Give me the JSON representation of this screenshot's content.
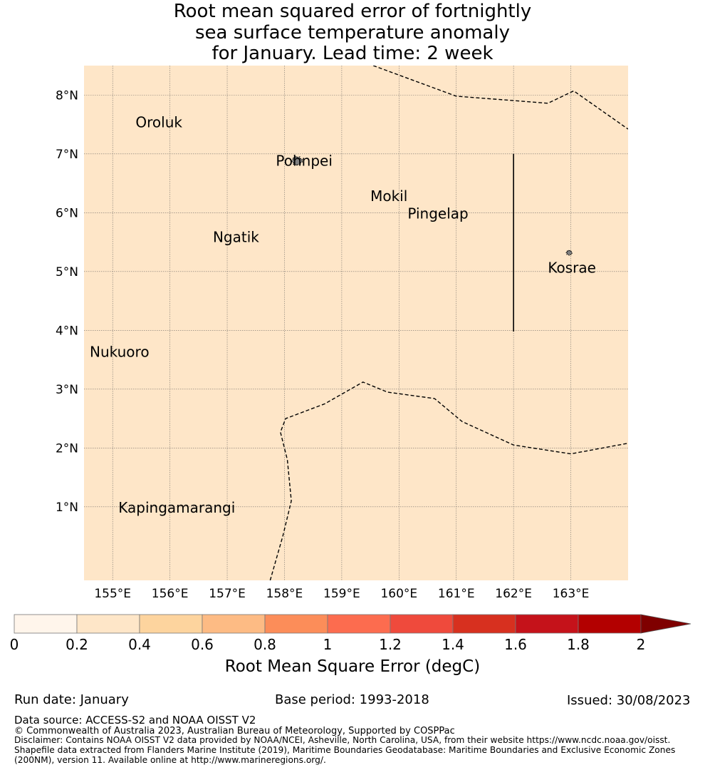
{
  "title": {
    "line1": "Root mean squared error of fortnightly",
    "line2": "sea surface temperature anomaly",
    "line3": "for January. Lead time: 2 week"
  },
  "map": {
    "lon_range": [
      154.5,
      164.0
    ],
    "lat_range": [
      -0.25,
      8.5
    ],
    "lon_ticks": [
      {
        "value": 155,
        "label": "155°E"
      },
      {
        "value": 156,
        "label": "156°E"
      },
      {
        "value": 157,
        "label": "157°E"
      },
      {
        "value": 158,
        "label": "158°E"
      },
      {
        "value": 159,
        "label": "159°E"
      },
      {
        "value": 160,
        "label": "160°E"
      },
      {
        "value": 161,
        "label": "161°E"
      },
      {
        "value": 162,
        "label": "162°E"
      },
      {
        "value": 163,
        "label": "163°E"
      }
    ],
    "lat_ticks": [
      {
        "value": 1,
        "label": "1°N"
      },
      {
        "value": 2,
        "label": "2°N"
      },
      {
        "value": 3,
        "label": "3°N"
      },
      {
        "value": 4,
        "label": "4°N"
      },
      {
        "value": 5,
        "label": "5°N"
      },
      {
        "value": 6,
        "label": "6°N"
      },
      {
        "value": 7,
        "label": "7°N"
      },
      {
        "value": 8,
        "label": "8°N"
      }
    ],
    "field_color": "#fee6c8",
    "land_color": "#808080",
    "places": [
      {
        "name": "Oroluk",
        "lon": 155.4,
        "lat": 7.45
      },
      {
        "name": "Pohnpei",
        "lon": 157.85,
        "lat": 6.8
      },
      {
        "name": "Mokil",
        "lon": 159.5,
        "lat": 6.2
      },
      {
        "name": "Pingelap",
        "lon": 160.15,
        "lat": 5.9
      },
      {
        "name": "Ngatik",
        "lon": 156.75,
        "lat": 5.5
      },
      {
        "name": "Kosrae",
        "lon": 162.6,
        "lat": 4.98
      },
      {
        "name": "Nukuoro",
        "lon": 154.6,
        "lat": 3.55
      },
      {
        "name": "Kapingamarangi",
        "lon": 155.1,
        "lat": 0.9
      }
    ],
    "islands": [
      {
        "name": "Pohnpei",
        "lon": 158.22,
        "lat": 6.88,
        "size": 1.0
      },
      {
        "name": "Kosrae",
        "lon": 162.97,
        "lat": 5.32,
        "size": 0.55
      }
    ],
    "eez_boundaries": [
      [
        [
          159.55,
          8.5
        ],
        [
          161.0,
          7.98
        ],
        [
          162.6,
          7.86
        ],
        [
          163.05,
          8.07
        ],
        [
          164.0,
          7.42
        ]
      ],
      [
        [
          157.75,
          -0.25
        ],
        [
          157.97,
          0.5
        ],
        [
          158.12,
          1.1
        ],
        [
          158.05,
          1.8
        ],
        [
          157.93,
          2.27
        ],
        [
          158.02,
          2.5
        ],
        [
          158.7,
          2.75
        ],
        [
          159.37,
          3.12
        ],
        [
          159.8,
          2.95
        ],
        [
          160.62,
          2.84
        ],
        [
          161.1,
          2.45
        ],
        [
          162.0,
          2.05
        ],
        [
          163.0,
          1.9
        ],
        [
          164.0,
          2.08
        ]
      ]
    ],
    "solid_line": [
      [
        162.0,
        7.0
      ],
      [
        162.0,
        3.98
      ]
    ]
  },
  "colorbar": {
    "bounds": [
      0,
      0.2,
      0.4,
      0.6,
      0.8,
      1,
      1.2,
      1.4,
      1.6,
      1.8,
      2
    ],
    "tick_labels": [
      "0",
      "0.2",
      "0.4",
      "0.6",
      "0.8",
      "1",
      "1.2",
      "1.4",
      "1.6",
      "1.8",
      "2"
    ],
    "colors": [
      "#fff5eb",
      "#fee6c8",
      "#fdd49e",
      "#fdbb84",
      "#fc8d59",
      "#fc6c4f",
      "#ef4a3c",
      "#d7301f",
      "#c5121a",
      "#b30000"
    ],
    "extend_color": "#7f0000",
    "label": "Root Mean Square Error (degC)"
  },
  "footer": {
    "run_date": "Run date: January",
    "base_period": "Base period: 1993-2018",
    "issued": "Issued: 30/08/2023",
    "data_source": "Data source: ACCESS-S2 and NOAA OISST V2",
    "copyright": "© Commonwealth of Australia 2023, Australian Bureau of Meteorology, Supported by COSPPac",
    "disclaimer1": "Disclaimer: Contains NOAA OISST V2 data provided by NOAA/NCEI, Asheville, North Carolina, USA, from their website https://www.ncdc.noaa.gov/oisst.",
    "disclaimer2": "Shapefile data extracted from Flanders Marine Institute (2019), Maritime Boundaries Geodatabase: Maritime Boundaries and Exclusive Economic Zones",
    "disclaimer3": "(200NM), version 11. Available online at http://www.marineregions.org/."
  }
}
